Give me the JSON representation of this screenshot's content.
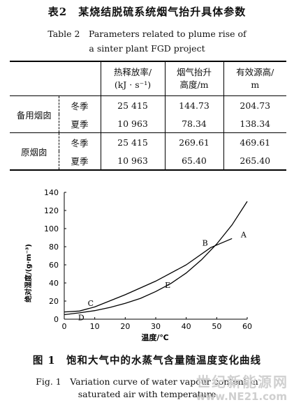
{
  "table": {
    "title_cn": "表2　某烧结脱硫系统烟气抬升具体参数",
    "title_en_line1": "Table 2　Parameters related to plume rise of",
    "title_en_line2": "a sinter plant FGD project",
    "headers": {
      "col3_l1": "热释放率/",
      "col3_l2": "(kJ · s⁻¹)",
      "col4_l1": "烟气抬升",
      "col4_l2": "高度/m",
      "col5_l1": "有效源高/",
      "col5_l2": "m"
    },
    "groups": [
      {
        "name": "备用烟囱",
        "rows": [
          {
            "season": "冬季",
            "heat": "25 415",
            "rise": "144.73",
            "height": "204.73"
          },
          {
            "season": "夏季",
            "heat": "10 963",
            "rise": "78.34",
            "height": "138.34"
          }
        ]
      },
      {
        "name": "原烟囱",
        "rows": [
          {
            "season": "冬季",
            "heat": "25 415",
            "rise": "269.61",
            "height": "469.61"
          },
          {
            "season": "夏季",
            "heat": "10 963",
            "rise": "65.40",
            "height": "265.40"
          }
        ]
      }
    ]
  },
  "chart_data": {
    "type": "line",
    "xlabel": "温度/℃",
    "ylabel": "绝对湿度/(g·m⁻³)",
    "xlim": [
      0,
      60
    ],
    "ylim": [
      0,
      140
    ],
    "xticks": [
      0,
      10,
      20,
      30,
      40,
      50,
      60
    ],
    "yticks": [
      0,
      20,
      40,
      60,
      80,
      100,
      120,
      140
    ],
    "series": [
      {
        "x": [
          0,
          5,
          10,
          15,
          20,
          25,
          30,
          35,
          40,
          45,
          50,
          55,
          60
        ],
        "values": [
          5,
          7,
          9.5,
          13,
          17.5,
          23,
          30.5,
          39.5,
          51,
          65.5,
          83,
          104,
          130
        ]
      },
      {
        "x": [
          0,
          5,
          10,
          20,
          30,
          40,
          48,
          55
        ],
        "values": [
          8,
          9,
          13.5,
          27,
          42,
          60,
          79,
          89
        ]
      }
    ],
    "annotations": [
      {
        "label": "A",
        "x": 57,
        "y": 89
      },
      {
        "label": "B",
        "x": 48,
        "y": 81
      },
      {
        "label": "C",
        "x": 10,
        "y": 13
      },
      {
        "label": "D",
        "x": 5,
        "y": 5
      },
      {
        "label": "E",
        "x": 33,
        "y": 30
      }
    ]
  },
  "figure": {
    "caption_cn": "图 1　饱和大气中的水蒸气含量随温度变化曲线",
    "caption_en_line1": "Fig. 1　Variation curve of water vapour content in",
    "caption_en_line2": "saturated air with temperature"
  },
  "watermark": {
    "line1": "世纪新能源网",
    "line2": "www.NE21.com"
  }
}
